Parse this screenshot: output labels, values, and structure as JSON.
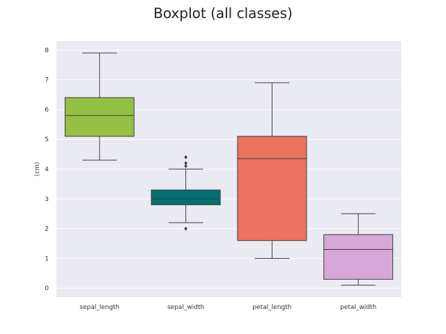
{
  "chart_data": {
    "type": "box",
    "title": "Boxplot (all classes)",
    "xlabel": "",
    "ylabel": "(cm)",
    "ylim": [
      -0.3,
      8.3
    ],
    "yticks": [
      0,
      1,
      2,
      3,
      4,
      5,
      6,
      7,
      8
    ],
    "grid": true,
    "categories": [
      "sepal_length",
      "sepal_width",
      "petal_length",
      "petal_width"
    ],
    "boxes": [
      {
        "category": "sepal_length",
        "whisker_low": 4.3,
        "q1": 5.1,
        "median": 5.8,
        "q3": 6.4,
        "whisker_high": 7.9,
        "outliers": [],
        "color": "#94c043"
      },
      {
        "category": "sepal_width",
        "whisker_low": 2.2,
        "q1": 2.8,
        "median": 3.0,
        "q3": 3.3,
        "whisker_high": 4.0,
        "outliers": [
          4.1,
          4.2,
          4.4,
          2.0
        ],
        "color": "#007072"
      },
      {
        "category": "petal_length",
        "whisker_low": 1.0,
        "q1": 1.6,
        "median": 4.35,
        "q3": 5.1,
        "whisker_high": 6.9,
        "outliers": [],
        "color": "#ec735f"
      },
      {
        "category": "petal_width",
        "whisker_low": 0.1,
        "q1": 0.3,
        "median": 1.3,
        "q3": 1.8,
        "whisker_high": 2.5,
        "outliers": [],
        "color": "#d6a7d7"
      }
    ],
    "plot_background": "#eaeaf2",
    "gridline_color": "#ffffff",
    "line_color": "#3d3d3d"
  }
}
